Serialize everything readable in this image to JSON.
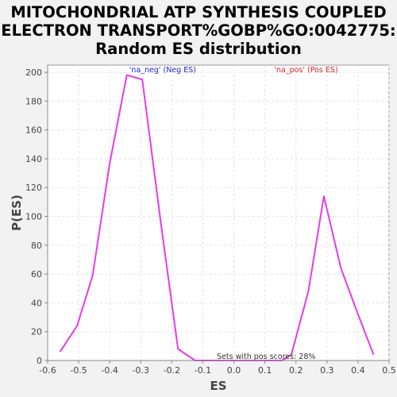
{
  "chart_data": {
    "type": "line",
    "title": [
      "MITOCHONDRIAL ATP SYNTHESIS COUPLED",
      "ELECTRON TRANSPORT%GOBP%GO:0042775:",
      "Random ES distribution"
    ],
    "xlabel": "ES",
    "ylabel": "P(ES)",
    "xlim": [
      -0.6,
      0.5
    ],
    "ylim": [
      0,
      205
    ],
    "xticks": [
      -0.6,
      -0.5,
      -0.4,
      -0.3,
      -0.2,
      -0.1,
      0.0,
      0.1,
      0.2,
      0.3,
      0.4,
      0.5
    ],
    "xtick_labels": [
      "-0.6",
      "-0.5",
      "-0.4",
      "-0.3",
      "-0.2",
      "-0.1",
      "0.0",
      "0.1",
      "0.2",
      "0.3",
      "0.4",
      "0.5"
    ],
    "yticks": [
      0,
      20,
      40,
      60,
      80,
      100,
      120,
      140,
      160,
      180,
      200
    ],
    "ytick_labels": [
      "0",
      "20",
      "40",
      "60",
      "80",
      "100",
      "120",
      "140",
      "160",
      "180",
      "200"
    ],
    "grid": true,
    "series": [
      {
        "color": "#e83ae8",
        "x": [
          -0.56,
          -0.505,
          -0.455,
          -0.4,
          -0.345,
          -0.295,
          -0.235,
          -0.18,
          -0.125,
          -0.065,
          -0.01,
          0.045,
          0.1,
          0.155,
          0.185,
          0.24,
          0.29,
          0.345,
          0.4,
          0.45
        ],
        "y": [
          6,
          24,
          59,
          137,
          198,
          195,
          95,
          8,
          0,
          0,
          0,
          0,
          0,
          0,
          4,
          48,
          114,
          64,
          32,
          4
        ]
      }
    ],
    "annotations": [
      {
        "text": "'na_neg' (Neg ES)",
        "color": "#1f1fd6",
        "x": -0.337,
        "y": 200
      },
      {
        "text": "'na_pos' (Pos ES)",
        "color": "#e01f1f",
        "x": 0.13,
        "y": 200
      },
      {
        "text": "Sets with pos scores: 28%",
        "color": "#333333",
        "x": -0.055,
        "y": 1
      }
    ]
  }
}
